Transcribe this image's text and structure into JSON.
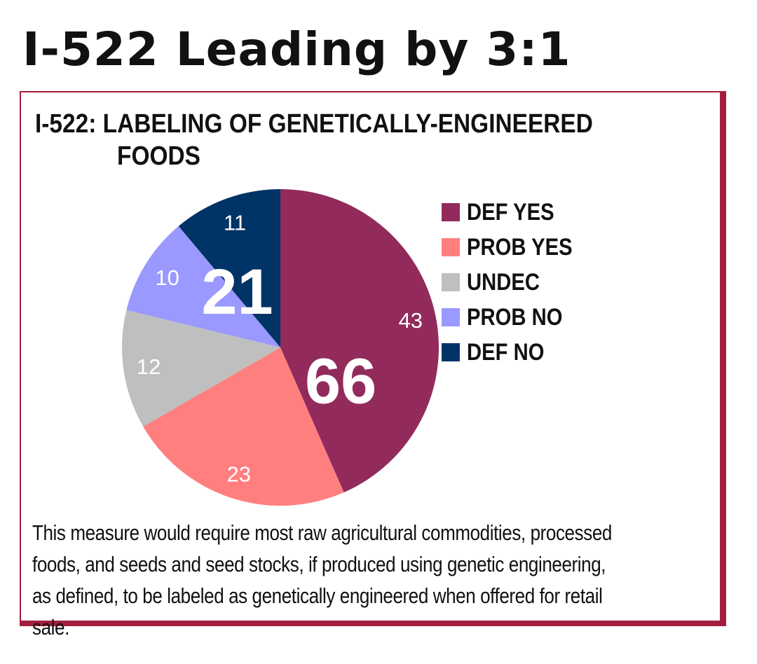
{
  "headline": "I-522 Leading by 3:1",
  "chart_data": {
    "type": "pie",
    "title_line1": "I-522: LABELING OF GENETICALLY-ENGINEERED",
    "title_line2": "FOODS",
    "slices": [
      {
        "label": "DEF YES",
        "value": 43,
        "color": "#922b5c"
      },
      {
        "label": "PROB YES",
        "value": 23,
        "color": "#ff7f7f"
      },
      {
        "label": "UNDEC",
        "value": 12,
        "color": "#bfbfbf"
      },
      {
        "label": "PROB NO",
        "value": 10,
        "color": "#9999ff"
      },
      {
        "label": "DEF NO",
        "value": 11,
        "color": "#003366"
      }
    ],
    "totals": [
      {
        "label": "66",
        "slices": [
          "DEF YES",
          "PROB YES"
        ]
      },
      {
        "label": "21",
        "slices": [
          "PROB NO",
          "DEF NO"
        ]
      }
    ],
    "start_angle_deg": 0,
    "direction": "clockwise",
    "legend_position": "right"
  },
  "description": "This measure would require most raw agricultural commodities, processed foods, and seeds and seed stocks, if produced using genetic engineering, as defined, to be labeled as genetically engineered when offered for retail sale."
}
